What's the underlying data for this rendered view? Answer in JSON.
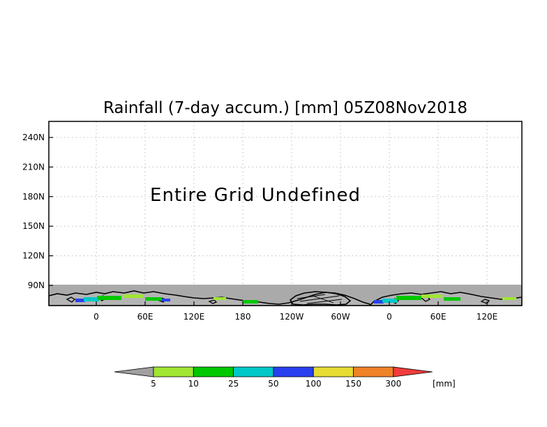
{
  "chart_data": {
    "type": "map",
    "title": "Rainfall (7-day accum.) [mm] 05Z08Nov2018",
    "annotation": "Entire Grid Undefined",
    "y_ticks": [
      "240N",
      "210N",
      "180N",
      "150N",
      "120N",
      "90N"
    ],
    "x_ticks": [
      "0",
      "60E",
      "120E",
      "180",
      "120W",
      "60W",
      "0",
      "60E",
      "120E"
    ],
    "grid": true,
    "undefined_region_color": "#aaaaaa",
    "colorbar": {
      "unit": "[mm]",
      "labels": [
        "5",
        "10",
        "25",
        "50",
        "100",
        "150",
        "300"
      ],
      "colors": [
        "#a0a0a0",
        "#a0e632",
        "#00c800",
        "#00c8c8",
        "#2840f0",
        "#e6dc32",
        "#f08228",
        "#f03c3c"
      ]
    }
  }
}
